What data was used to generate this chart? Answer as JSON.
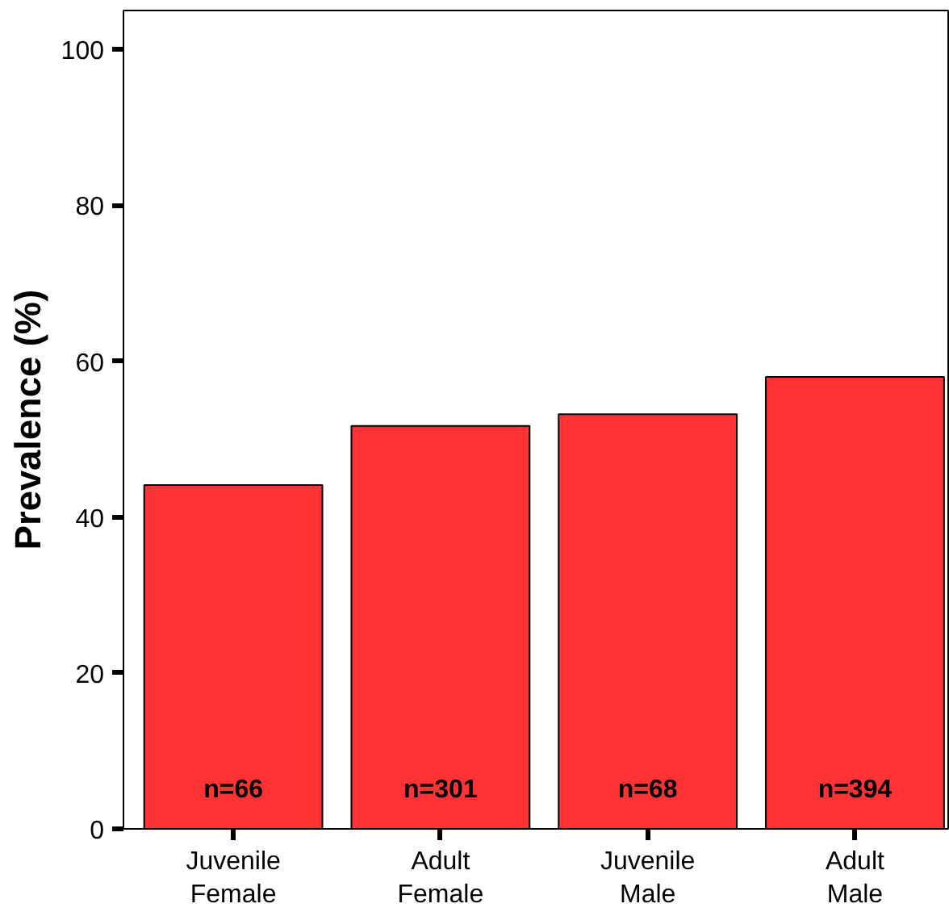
{
  "chart_data": {
    "type": "bar",
    "ylabel": "Prevalence (%)",
    "categories": [
      "Juvenile\nFemale",
      "Adult\nFemale",
      "Juvenile\nMale",
      "Adult\nMale"
    ],
    "values": [
      44.1,
      51.7,
      53.2,
      58.0
    ],
    "color": "#ff3333",
    "ylim": [
      0,
      105
    ],
    "yticks": [
      0,
      20,
      40,
      60,
      80,
      100
    ],
    "grid": false,
    "annotations": [
      "n=66",
      "n=301",
      "n=68",
      "n=394"
    ]
  }
}
